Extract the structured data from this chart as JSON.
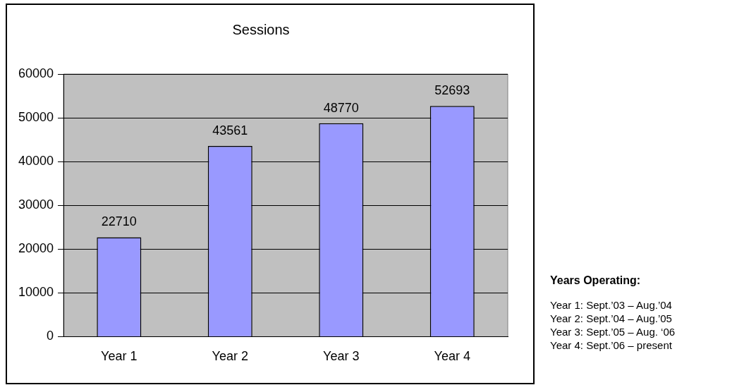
{
  "chart_data": {
    "type": "bar",
    "title": "Sessions",
    "categories": [
      "Year 1",
      "Year 2",
      "Year 3",
      "Year 4"
    ],
    "values": [
      22710,
      43561,
      48770,
      52693
    ],
    "color": "#9999ff",
    "ylim": [
      0,
      60000
    ],
    "yticks": [
      0,
      10000,
      20000,
      30000,
      40000,
      50000,
      60000
    ],
    "grid": "y",
    "legend": false,
    "data_labels": true,
    "annotations": [
      "Years Operating:",
      "Year 1: Sept.’03 – Aug.’04",
      "Year 2: Sept.’04 – Aug.’05",
      "Year 3: Sept.’05 – Aug. ‘06",
      "Year 4: Sept.’06 – present"
    ]
  }
}
